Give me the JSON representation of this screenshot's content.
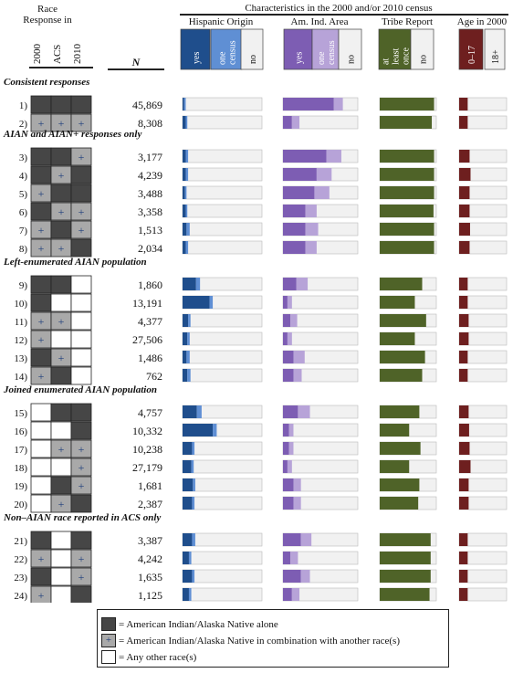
{
  "header": {
    "race_title": [
      "Race",
      "Response in"
    ],
    "race_cols": [
      "2000",
      "ACS",
      "2010"
    ],
    "n_label": "N",
    "characteristics_title": "Characteristics in the 2000 and/or 2010 census"
  },
  "colors": {
    "alone": "#464646",
    "combination": "#a9a9a9",
    "other": "#ffffff",
    "hisp_yes": "#1f4e8c",
    "hisp_once": "#5f8fd4",
    "area_yes": "#7d5db3",
    "area_once": "#b7a3d8",
    "tribe_yes": "#4f6328",
    "age_young": "#6e1f1f",
    "none": "#f1f1f1",
    "plus": "#1f3e7c"
  },
  "panels": [
    {
      "key": "hispanic",
      "title": "Hispanic Origin",
      "legend": [
        {
          "label": "yes",
          "color": "hisp_yes"
        },
        {
          "label": "one census",
          "color": "hisp_once"
        },
        {
          "label": "no",
          "color": "none"
        }
      ]
    },
    {
      "key": "area",
      "title": "Am. Ind. Area",
      "legend": [
        {
          "label": "yes",
          "color": "area_yes"
        },
        {
          "label": "one census",
          "color": "area_once"
        },
        {
          "label": "no",
          "color": "none"
        }
      ]
    },
    {
      "key": "tribe",
      "title": "Tribe Report",
      "legend": [
        {
          "label": "at least once",
          "color": "tribe_yes"
        },
        {
          "label": "no",
          "color": "none"
        }
      ]
    },
    {
      "key": "age",
      "title": "Age in 2000",
      "legend": [
        {
          "label": "0–17",
          "color": "age_young"
        },
        {
          "label": "18+",
          "color": "none"
        }
      ]
    }
  ],
  "legend": {
    "alone": "= American Indian/Alaska Native alone",
    "combination": "= American Indian/Alaska Native in combination with another race(s)",
    "other": "= Any other race(s)",
    "plus_symbol": "+"
  },
  "chart_data": {
    "type": "bar",
    "orientation": "horizontal",
    "stacked": true,
    "unit": "fraction of group",
    "groups": [
      {
        "title": "Consistent responses",
        "rows": [
          {
            "label": "1)",
            "n": "45,869",
            "race": [
              "A",
              "A",
              "A"
            ],
            "hispanic": [
              0.02,
              0.02
            ],
            "area": [
              0.68,
              0.12
            ],
            "tribe": 0.96,
            "age": 0.18
          },
          {
            "label": "2)",
            "n": "8,308",
            "race": [
              "C",
              "C",
              "C"
            ],
            "hispanic": [
              0.04,
              0.02
            ],
            "area": [
              0.12,
              0.1
            ],
            "tribe": 0.92,
            "age": 0.18
          }
        ]
      },
      {
        "title": "AIAN and AIAN+ responses only",
        "rows": [
          {
            "label": "3)",
            "n": "3,177",
            "race": [
              "A",
              "A",
              "C"
            ],
            "hispanic": [
              0.04,
              0.03
            ],
            "area": [
              0.58,
              0.2
            ],
            "tribe": 0.96,
            "age": 0.22
          },
          {
            "label": "4)",
            "n": "4,239",
            "race": [
              "A",
              "C",
              "A"
            ],
            "hispanic": [
              0.04,
              0.03
            ],
            "area": [
              0.45,
              0.2
            ],
            "tribe": 0.96,
            "age": 0.24
          },
          {
            "label": "5)",
            "n": "3,488",
            "race": [
              "C",
              "A",
              "A"
            ],
            "hispanic": [
              0.03,
              0.02
            ],
            "area": [
              0.42,
              0.2
            ],
            "tribe": 0.96,
            "age": 0.22
          },
          {
            "label": "6)",
            "n": "3,358",
            "race": [
              "A",
              "C",
              "C"
            ],
            "hispanic": [
              0.04,
              0.02
            ],
            "area": [
              0.3,
              0.15
            ],
            "tribe": 0.95,
            "age": 0.22
          },
          {
            "label": "7)",
            "n": "1,513",
            "race": [
              "C",
              "A",
              "C"
            ],
            "hispanic": [
              0.05,
              0.04
            ],
            "area": [
              0.3,
              0.17
            ],
            "tribe": 0.96,
            "age": 0.23
          },
          {
            "label": "8)",
            "n": "2,034",
            "race": [
              "C",
              "C",
              "A"
            ],
            "hispanic": [
              0.04,
              0.03
            ],
            "area": [
              0.3,
              0.15
            ],
            "tribe": 0.96,
            "age": 0.22
          }
        ]
      },
      {
        "title": "Left-enumerated AIAN population",
        "rows": [
          {
            "label": "9)",
            "n": "1,860",
            "race": [
              "A",
              "A",
              "O"
            ],
            "hispanic": [
              0.17,
              0.05
            ],
            "area": [
              0.18,
              0.15
            ],
            "tribe": 0.75,
            "age": 0.18
          },
          {
            "label": "10)",
            "n": "13,191",
            "race": [
              "A",
              "O",
              "O"
            ],
            "hispanic": [
              0.34,
              0.04
            ],
            "area": [
              0.06,
              0.06
            ],
            "tribe": 0.62,
            "age": 0.18
          },
          {
            "label": "11)",
            "n": "4,377",
            "race": [
              "C",
              "C",
              "O"
            ],
            "hispanic": [
              0.07,
              0.03
            ],
            "area": [
              0.1,
              0.09
            ],
            "tribe": 0.82,
            "age": 0.2
          },
          {
            "label": "12)",
            "n": "27,506",
            "race": [
              "C",
              "O",
              "O"
            ],
            "hispanic": [
              0.06,
              0.03
            ],
            "area": [
              0.06,
              0.06
            ],
            "tribe": 0.62,
            "age": 0.2
          },
          {
            "label": "13)",
            "n": "1,486",
            "race": [
              "A",
              "C",
              "O"
            ],
            "hispanic": [
              0.05,
              0.04
            ],
            "area": [
              0.14,
              0.15
            ],
            "tribe": 0.8,
            "age": 0.18
          },
          {
            "label": "14)",
            "n": "762",
            "race": [
              "C",
              "A",
              "O"
            ],
            "hispanic": [
              0.06,
              0.04
            ],
            "area": [
              0.14,
              0.11
            ],
            "tribe": 0.75,
            "age": 0.18
          }
        ]
      },
      {
        "title": "Joined enumerated AIAN population",
        "rows": [
          {
            "label": "15)",
            "n": "4,757",
            "race": [
              "O",
              "A",
              "A"
            ],
            "hispanic": [
              0.18,
              0.06
            ],
            "area": [
              0.2,
              0.16
            ],
            "tribe": 0.7,
            "age": 0.2
          },
          {
            "label": "16)",
            "n": "10,332",
            "race": [
              "O",
              "O",
              "A"
            ],
            "hispanic": [
              0.38,
              0.05
            ],
            "area": [
              0.08,
              0.06
            ],
            "tribe": 0.52,
            "age": 0.21
          },
          {
            "label": "17)",
            "n": "10,238",
            "race": [
              "O",
              "C",
              "C"
            ],
            "hispanic": [
              0.12,
              0.03
            ],
            "area": [
              0.08,
              0.06
            ],
            "tribe": 0.72,
            "age": 0.22
          },
          {
            "label": "18)",
            "n": "27,179",
            "race": [
              "O",
              "O",
              "C"
            ],
            "hispanic": [
              0.11,
              0.03
            ],
            "area": [
              0.06,
              0.06
            ],
            "tribe": 0.52,
            "age": 0.24
          },
          {
            "label": "19)",
            "n": "1,681",
            "race": [
              "O",
              "A",
              "C"
            ],
            "hispanic": [
              0.13,
              0.03
            ],
            "area": [
              0.14,
              0.1
            ],
            "tribe": 0.7,
            "age": 0.2
          },
          {
            "label": "20)",
            "n": "2,387",
            "race": [
              "O",
              "C",
              "A"
            ],
            "hispanic": [
              0.12,
              0.03
            ],
            "area": [
              0.14,
              0.1
            ],
            "tribe": 0.68,
            "age": 0.2
          }
        ]
      },
      {
        "title": "Non–AIAN race reported in ACS only",
        "rows": [
          {
            "label": "21)",
            "n": "3,387",
            "race": [
              "A",
              "O",
              "A"
            ],
            "hispanic": [
              0.12,
              0.04
            ],
            "area": [
              0.24,
              0.14
            ],
            "tribe": 0.9,
            "age": 0.18
          },
          {
            "label": "22)",
            "n": "4,242",
            "race": [
              "C",
              "O",
              "C"
            ],
            "hispanic": [
              0.08,
              0.03
            ],
            "area": [
              0.1,
              0.1
            ],
            "tribe": 0.9,
            "age": 0.18
          },
          {
            "label": "23)",
            "n": "1,635",
            "race": [
              "A",
              "O",
              "C"
            ],
            "hispanic": [
              0.12,
              0.03
            ],
            "area": [
              0.24,
              0.12
            ],
            "tribe": 0.9,
            "age": 0.18
          },
          {
            "label": "24)",
            "n": "1,125",
            "race": [
              "C",
              "O",
              "A"
            ],
            "hispanic": [
              0.08,
              0.03
            ],
            "area": [
              0.12,
              0.1
            ],
            "tribe": 0.88,
            "age": 0.18
          }
        ]
      }
    ]
  }
}
